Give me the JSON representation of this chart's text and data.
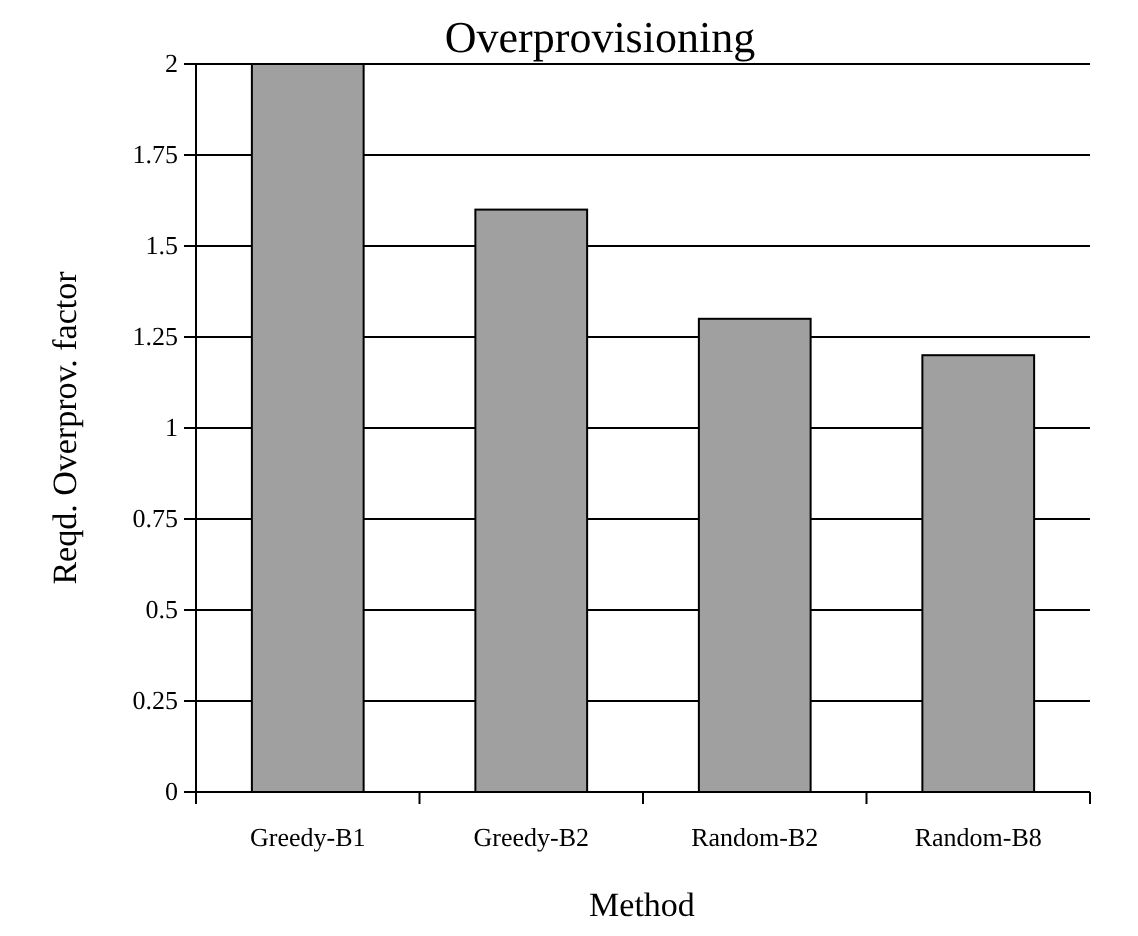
{
  "chart_data": {
    "type": "bar",
    "title": "Overprovisioning",
    "xlabel": "Method",
    "ylabel": "Reqd. Overprov. factor",
    "categories": [
      "Greedy-B1",
      "Greedy-B2",
      "Random-B2",
      "Random-B8"
    ],
    "values": [
      2,
      1.6,
      1.3,
      1.2
    ],
    "color": "#a0a0a0",
    "ylim": [
      0,
      2
    ],
    "yticks": [
      0,
      0.25,
      0.5,
      0.75,
      1,
      1.25,
      1.5,
      1.75,
      2
    ],
    "grid": "y"
  }
}
